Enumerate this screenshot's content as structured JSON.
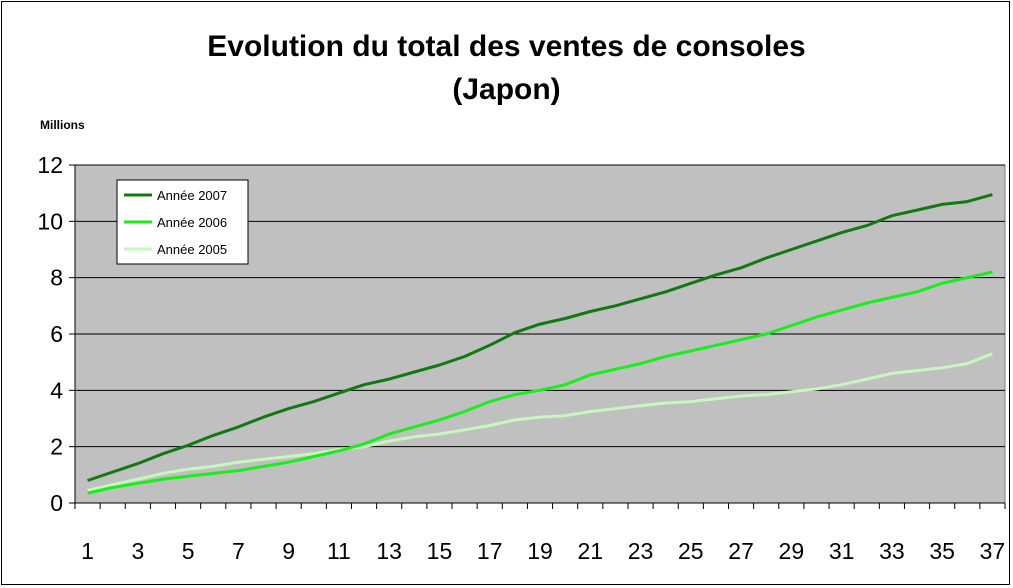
{
  "chart_data": {
    "type": "line",
    "title_line1": "Evolution du total des ventes de consoles",
    "title_line2": "(Japon)",
    "units_label": "Millions",
    "ylim": [
      0,
      12
    ],
    "y_ticks": [
      0,
      2,
      4,
      6,
      8,
      10,
      12
    ],
    "x": [
      1,
      2,
      3,
      4,
      5,
      6,
      7,
      8,
      9,
      10,
      11,
      12,
      13,
      14,
      15,
      16,
      17,
      18,
      19,
      20,
      21,
      22,
      23,
      24,
      25,
      26,
      27,
      28,
      29,
      30,
      31,
      32,
      33,
      34,
      35,
      36,
      37
    ],
    "x_tick_labels": [
      "1",
      "3",
      "5",
      "7",
      "9",
      "11",
      "13",
      "15",
      "17",
      "19",
      "21",
      "23",
      "25",
      "27",
      "29",
      "31",
      "33",
      "35",
      "37"
    ],
    "grid": "horizontal",
    "legend_position": "top-left",
    "plot_background": "#c0c0c0",
    "series": [
      {
        "name": "Année 2007",
        "color": "#107a10",
        "values": [
          0.8,
          1.1,
          1.4,
          1.75,
          2.05,
          2.4,
          2.7,
          3.05,
          3.35,
          3.6,
          3.9,
          4.2,
          4.4,
          4.65,
          4.9,
          5.2,
          5.6,
          6.05,
          6.35,
          6.55,
          6.8,
          7.0,
          7.25,
          7.5,
          7.8,
          8.1,
          8.35,
          8.7,
          9.0,
          9.3,
          9.6,
          9.85,
          10.2,
          10.4,
          10.6,
          10.7,
          10.95
        ]
      },
      {
        "name": "Année 2006",
        "color": "#1aee1a",
        "values": [
          0.35,
          0.55,
          0.7,
          0.85,
          0.95,
          1.05,
          1.15,
          1.3,
          1.45,
          1.65,
          1.85,
          2.1,
          2.45,
          2.7,
          2.95,
          3.25,
          3.6,
          3.85,
          4.0,
          4.2,
          4.55,
          4.75,
          4.95,
          5.2,
          5.4,
          5.6,
          5.8,
          6.0,
          6.3,
          6.6,
          6.85,
          7.1,
          7.3,
          7.5,
          7.8,
          8.0,
          8.2
        ]
      },
      {
        "name": "Année 2005",
        "color": "#c8f5c0",
        "values": [
          0.45,
          0.65,
          0.85,
          1.05,
          1.2,
          1.3,
          1.45,
          1.55,
          1.65,
          1.75,
          1.9,
          2.0,
          2.2,
          2.35,
          2.45,
          2.6,
          2.75,
          2.95,
          3.05,
          3.1,
          3.25,
          3.35,
          3.45,
          3.55,
          3.6,
          3.7,
          3.8,
          3.85,
          3.95,
          4.05,
          4.2,
          4.4,
          4.6,
          4.7,
          4.8,
          4.95,
          5.3
        ]
      }
    ]
  }
}
